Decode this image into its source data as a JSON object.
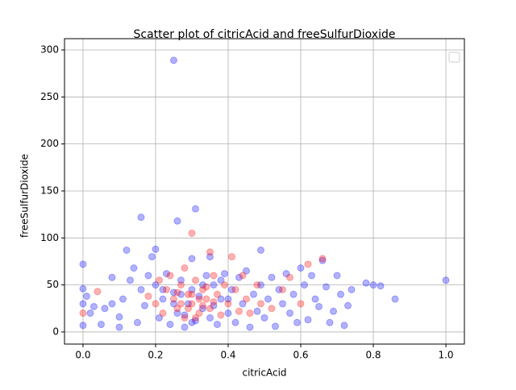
{
  "chart_data": {
    "type": "scatter",
    "title": "Scatter plot of citricAcid and freeSulfurDioxide",
    "x_label": "citricAcid",
    "y_label": "freeSulfurDioxide",
    "xlim": [
      -0.051,
      1.051
    ],
    "ylim": [
      -12.9,
      312
    ],
    "xticks": [
      {
        "value": 0,
        "label": "0.0"
      },
      {
        "value": 0.2,
        "label": "0.2"
      },
      {
        "value": 0.4,
        "label": "0.4"
      },
      {
        "value": 0.6,
        "label": "0.6"
      },
      {
        "value": 0.8,
        "label": "0.8"
      },
      {
        "value": 1,
        "label": "1.0"
      }
    ],
    "yticks": [
      0,
      50,
      100,
      150,
      200,
      250,
      300
    ],
    "grid": true,
    "series": [
      {
        "color": "#0000ff",
        "x": [
          0.0,
          0.0,
          0.0,
          0.0,
          0.01,
          0.02,
          0.03,
          0.05,
          0.06,
          0.08,
          0.08,
          0.1,
          0.1,
          0.11,
          0.12,
          0.13,
          0.14,
          0.15,
          0.16,
          0.16,
          0.17,
          0.18,
          0.19,
          0.2,
          0.2,
          0.21,
          0.22,
          0.23,
          0.24,
          0.25,
          0.25,
          0.26,
          0.26,
          0.27,
          0.28,
          0.29,
          0.3,
          0.3,
          0.31,
          0.31,
          0.32,
          0.33,
          0.34,
          0.35,
          0.35,
          0.36,
          0.37,
          0.38,
          0.39,
          0.4,
          0.41,
          0.42,
          0.43,
          0.44,
          0.45,
          0.46,
          0.47,
          0.48,
          0.49,
          0.49,
          0.5,
          0.51,
          0.52,
          0.53,
          0.54,
          0.55,
          0.56,
          0.57,
          0.58,
          0.59,
          0.6,
          0.61,
          0.62,
          0.63,
          0.64,
          0.65,
          0.66,
          0.67,
          0.68,
          0.69,
          0.7,
          0.71,
          0.72,
          0.73,
          0.74,
          0.78,
          0.8,
          0.82,
          0.86,
          1.0,
          0.25,
          0.27,
          0.33,
          0.36,
          0.28,
          0.22,
          0.38,
          0.3,
          0.4
        ],
        "values": [
          72,
          46,
          30,
          7,
          38,
          20,
          27,
          8,
          25,
          58,
          30,
          16,
          5,
          35,
          87,
          55,
          68,
          10,
          122,
          45,
          28,
          60,
          80,
          88,
          50,
          15,
          35,
          62,
          8,
          289,
          42,
          118,
          20,
          55,
          5,
          30,
          78,
          45,
          131,
          12,
          38,
          25,
          60,
          80,
          15,
          50,
          8,
          35,
          62,
          20,
          45,
          10,
          58,
          30,
          65,
          5,
          40,
          22,
          87,
          50,
          15,
          35,
          58,
          6,
          45,
          30,
          62,
          20,
          40,
          10,
          68,
          50,
          13,
          60,
          35,
          27,
          76,
          48,
          10,
          22,
          60,
          40,
          7,
          28,
          45,
          52,
          50,
          49,
          35,
          55,
          30,
          40,
          50,
          28,
          18,
          45,
          55,
          10,
          35
        ]
      },
      {
        "color": "#ff0000",
        "x": [
          0.0,
          0.04,
          0.18,
          0.2,
          0.21,
          0.22,
          0.23,
          0.24,
          0.25,
          0.26,
          0.27,
          0.28,
          0.28,
          0.29,
          0.3,
          0.3,
          0.31,
          0.32,
          0.33,
          0.34,
          0.35,
          0.35,
          0.36,
          0.37,
          0.38,
          0.39,
          0.4,
          0.41,
          0.42,
          0.43,
          0.44,
          0.45,
          0.46,
          0.48,
          0.49,
          0.52,
          0.55,
          0.57,
          0.6,
          0.62,
          0.66,
          0.3,
          0.29,
          0.32,
          0.27,
          0.34,
          0.31,
          0.26,
          0.36,
          0.33
        ],
        "values": [
          20,
          43,
          38,
          30,
          55,
          20,
          45,
          60,
          35,
          25,
          50,
          15,
          68,
          40,
          105,
          30,
          55,
          20,
          45,
          35,
          85,
          25,
          60,
          40,
          18,
          50,
          30,
          80,
          45,
          22,
          60,
          35,
          20,
          50,
          30,
          25,
          45,
          58,
          30,
          72,
          78,
          40,
          25,
          35,
          30,
          48,
          15,
          42,
          32,
          28
        ]
      }
    ]
  }
}
